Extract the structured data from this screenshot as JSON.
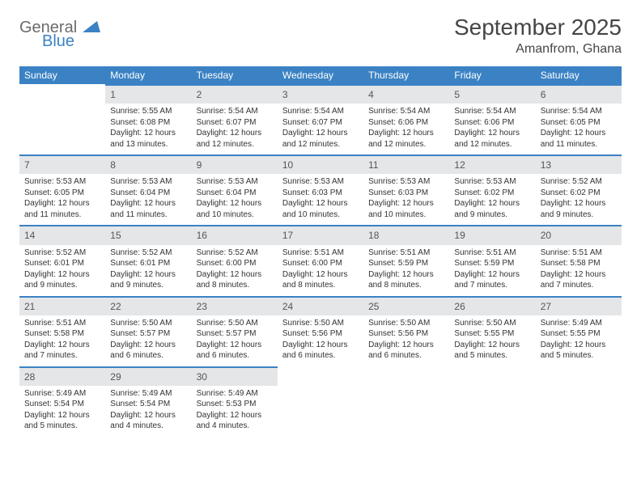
{
  "brand": {
    "word1": "General",
    "word2": "Blue"
  },
  "title": "September 2025",
  "location": "Amanfrom, Ghana",
  "colors": {
    "header_bg": "#3b82c4",
    "daynum_bg": "#e4e6e8",
    "rule": "#3b82c4",
    "text": "#333333",
    "title_text": "#454545",
    "logo_gray": "#6b6b6b",
    "logo_blue": "#3b82c4"
  },
  "weekdays": [
    "Sunday",
    "Monday",
    "Tuesday",
    "Wednesday",
    "Thursday",
    "Friday",
    "Saturday"
  ],
  "startOffset": 1,
  "days": [
    {
      "n": 1,
      "sunrise": "5:55 AM",
      "sunset": "6:08 PM",
      "daylight": "12 hours and 13 minutes."
    },
    {
      "n": 2,
      "sunrise": "5:54 AM",
      "sunset": "6:07 PM",
      "daylight": "12 hours and 12 minutes."
    },
    {
      "n": 3,
      "sunrise": "5:54 AM",
      "sunset": "6:07 PM",
      "daylight": "12 hours and 12 minutes."
    },
    {
      "n": 4,
      "sunrise": "5:54 AM",
      "sunset": "6:06 PM",
      "daylight": "12 hours and 12 minutes."
    },
    {
      "n": 5,
      "sunrise": "5:54 AM",
      "sunset": "6:06 PM",
      "daylight": "12 hours and 12 minutes."
    },
    {
      "n": 6,
      "sunrise": "5:54 AM",
      "sunset": "6:05 PM",
      "daylight": "12 hours and 11 minutes."
    },
    {
      "n": 7,
      "sunrise": "5:53 AM",
      "sunset": "6:05 PM",
      "daylight": "12 hours and 11 minutes."
    },
    {
      "n": 8,
      "sunrise": "5:53 AM",
      "sunset": "6:04 PM",
      "daylight": "12 hours and 11 minutes."
    },
    {
      "n": 9,
      "sunrise": "5:53 AM",
      "sunset": "6:04 PM",
      "daylight": "12 hours and 10 minutes."
    },
    {
      "n": 10,
      "sunrise": "5:53 AM",
      "sunset": "6:03 PM",
      "daylight": "12 hours and 10 minutes."
    },
    {
      "n": 11,
      "sunrise": "5:53 AM",
      "sunset": "6:03 PM",
      "daylight": "12 hours and 10 minutes."
    },
    {
      "n": 12,
      "sunrise": "5:53 AM",
      "sunset": "6:02 PM",
      "daylight": "12 hours and 9 minutes."
    },
    {
      "n": 13,
      "sunrise": "5:52 AM",
      "sunset": "6:02 PM",
      "daylight": "12 hours and 9 minutes."
    },
    {
      "n": 14,
      "sunrise": "5:52 AM",
      "sunset": "6:01 PM",
      "daylight": "12 hours and 9 minutes."
    },
    {
      "n": 15,
      "sunrise": "5:52 AM",
      "sunset": "6:01 PM",
      "daylight": "12 hours and 9 minutes."
    },
    {
      "n": 16,
      "sunrise": "5:52 AM",
      "sunset": "6:00 PM",
      "daylight": "12 hours and 8 minutes."
    },
    {
      "n": 17,
      "sunrise": "5:51 AM",
      "sunset": "6:00 PM",
      "daylight": "12 hours and 8 minutes."
    },
    {
      "n": 18,
      "sunrise": "5:51 AM",
      "sunset": "5:59 PM",
      "daylight": "12 hours and 8 minutes."
    },
    {
      "n": 19,
      "sunrise": "5:51 AM",
      "sunset": "5:59 PM",
      "daylight": "12 hours and 7 minutes."
    },
    {
      "n": 20,
      "sunrise": "5:51 AM",
      "sunset": "5:58 PM",
      "daylight": "12 hours and 7 minutes."
    },
    {
      "n": 21,
      "sunrise": "5:51 AM",
      "sunset": "5:58 PM",
      "daylight": "12 hours and 7 minutes."
    },
    {
      "n": 22,
      "sunrise": "5:50 AM",
      "sunset": "5:57 PM",
      "daylight": "12 hours and 6 minutes."
    },
    {
      "n": 23,
      "sunrise": "5:50 AM",
      "sunset": "5:57 PM",
      "daylight": "12 hours and 6 minutes."
    },
    {
      "n": 24,
      "sunrise": "5:50 AM",
      "sunset": "5:56 PM",
      "daylight": "12 hours and 6 minutes."
    },
    {
      "n": 25,
      "sunrise": "5:50 AM",
      "sunset": "5:56 PM",
      "daylight": "12 hours and 6 minutes."
    },
    {
      "n": 26,
      "sunrise": "5:50 AM",
      "sunset": "5:55 PM",
      "daylight": "12 hours and 5 minutes."
    },
    {
      "n": 27,
      "sunrise": "5:49 AM",
      "sunset": "5:55 PM",
      "daylight": "12 hours and 5 minutes."
    },
    {
      "n": 28,
      "sunrise": "5:49 AM",
      "sunset": "5:54 PM",
      "daylight": "12 hours and 5 minutes."
    },
    {
      "n": 29,
      "sunrise": "5:49 AM",
      "sunset": "5:54 PM",
      "daylight": "12 hours and 4 minutes."
    },
    {
      "n": 30,
      "sunrise": "5:49 AM",
      "sunset": "5:53 PM",
      "daylight": "12 hours and 4 minutes."
    }
  ],
  "labels": {
    "sunrise": "Sunrise:",
    "sunset": "Sunset:",
    "daylight": "Daylight:"
  }
}
